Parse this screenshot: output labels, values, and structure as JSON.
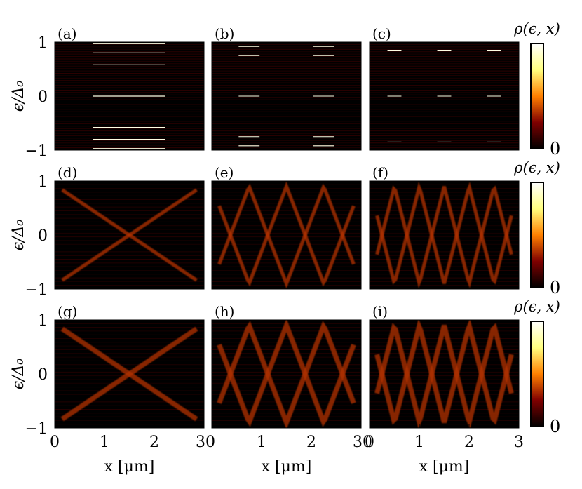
{
  "figure": {
    "colormap": "afmhot",
    "background": "#000000"
  },
  "axes": {
    "xlabel": "x [μm]",
    "ylabel": "ϵ/Δ₀",
    "xlim": [
      0,
      3
    ],
    "ylim": [
      -1,
      1
    ],
    "x_ticks": [
      "0",
      "1",
      "2",
      "3"
    ],
    "x_ticks_left": [
      "0",
      "1",
      "2",
      "30"
    ],
    "x_ticks_mid": [
      "1",
      "2",
      "30"
    ],
    "y_ticks": [
      "1",
      "0",
      "−1"
    ]
  },
  "colorbar": {
    "label": "ρ(ϵ, x)",
    "min_label": "0"
  },
  "chart_data": [
    {
      "type": "heatmap",
      "panel": "(a)",
      "row": 0,
      "col": 0,
      "xlim": [
        0,
        3
      ],
      "ylim": [
        -1,
        1
      ],
      "bright_levels": [
        0.97,
        0.8,
        0.58,
        0.0,
        -0.58,
        -0.8,
        -0.97
      ]
    },
    {
      "type": "heatmap",
      "panel": "(b)",
      "row": 0,
      "col": 1,
      "xlim": [
        0,
        3
      ],
      "ylim": [
        -1,
        1
      ],
      "bright_levels": [
        0.92,
        0.75,
        0.0,
        -0.75,
        -0.92
      ]
    },
    {
      "type": "heatmap",
      "panel": "(c)",
      "row": 0,
      "col": 2,
      "xlim": [
        0,
        3
      ],
      "ylim": [
        -1,
        1
      ],
      "bright_levels": [
        0.85,
        0.0,
        -0.85
      ]
    },
    {
      "type": "heatmap",
      "panel": "(d)",
      "row": 1,
      "col": 0,
      "xlim": [
        0,
        3
      ],
      "ylim": [
        -1,
        1
      ],
      "crossings": 1
    },
    {
      "type": "heatmap",
      "panel": "(e)",
      "row": 1,
      "col": 1,
      "xlim": [
        0,
        3
      ],
      "ylim": [
        -1,
        1
      ],
      "crossings": 2,
      "bright_levels": [
        0.5,
        0.33,
        -0.33,
        -0.5
      ]
    },
    {
      "type": "heatmap",
      "panel": "(f)",
      "row": 1,
      "col": 2,
      "xlim": [
        0,
        3
      ],
      "ylim": [
        -1,
        1
      ],
      "crossings": 3,
      "bright_levels": [
        0.5,
        0.33,
        0.0,
        -0.33
      ]
    },
    {
      "type": "heatmap",
      "panel": "(g)",
      "row": 2,
      "col": 0,
      "xlim": [
        0,
        3
      ],
      "ylim": [
        -1,
        1
      ],
      "crossings": 1
    },
    {
      "type": "heatmap",
      "panel": "(h)",
      "row": 2,
      "col": 1,
      "xlim": [
        0,
        3
      ],
      "ylim": [
        -1,
        1
      ],
      "crossings": 2
    },
    {
      "type": "heatmap",
      "panel": "(i)",
      "row": 2,
      "col": 2,
      "xlim": [
        0,
        3
      ],
      "ylim": [
        -1,
        1
      ],
      "crossings": 3
    }
  ]
}
